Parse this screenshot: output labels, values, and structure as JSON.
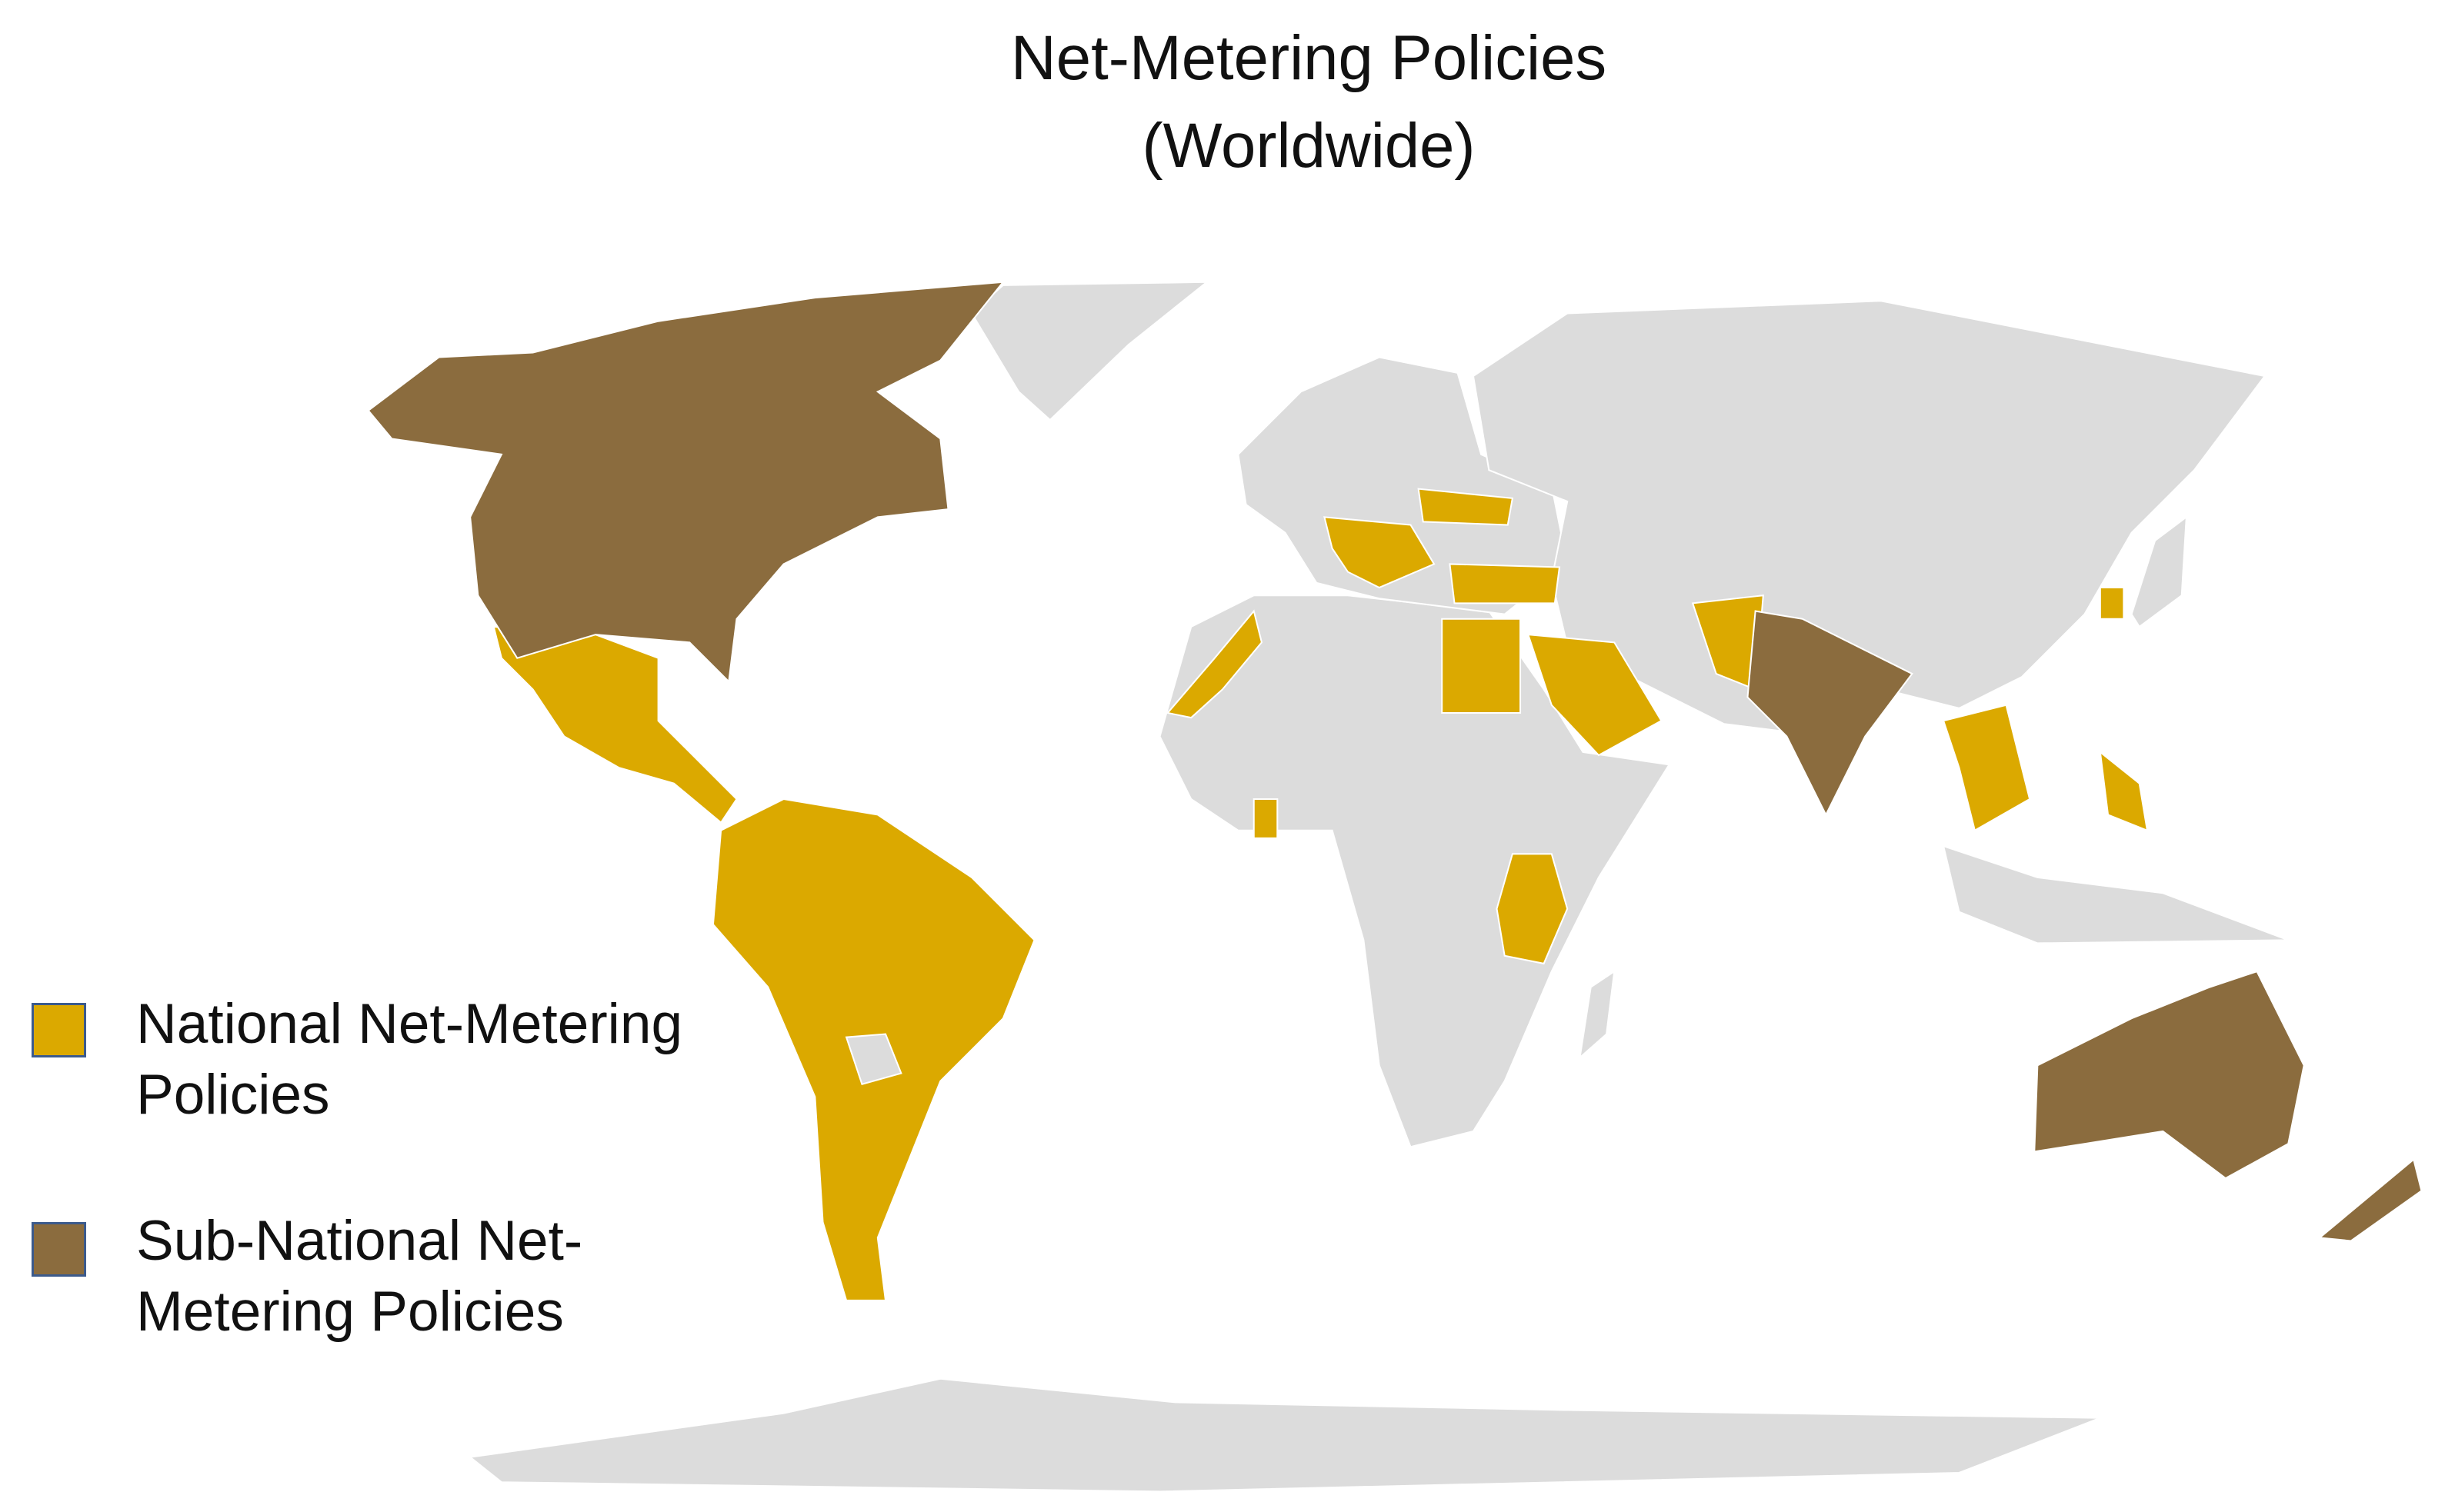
{
  "title": "Net-Metering Policies",
  "subtitle": "(Worldwide)",
  "land_color": "#dcdcdc",
  "legend": [
    {
      "label": "National Net-Metering Policies",
      "color": "#dba900"
    },
    {
      "label": "Sub-National Net-Metering Policies",
      "color": "#8b6c3e"
    }
  ]
}
